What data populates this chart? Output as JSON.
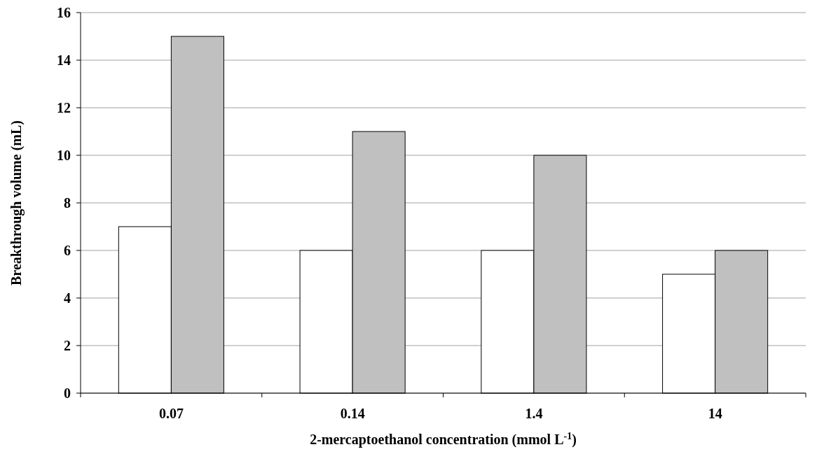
{
  "chart_data": {
    "type": "bar",
    "xlabel": "2-mercaptoethanol concentration (mmol L$^{-1}$)",
    "ylabel": "Breakthrough volume (mL)",
    "categories": [
      "0.07",
      "0.14",
      "1.4",
      "14"
    ],
    "series": [
      {
        "color": "#ffffff",
        "values": [
          7,
          6,
          6,
          5
        ]
      },
      {
        "color": "#c0c0c0",
        "values": [
          15,
          11,
          10,
          6
        ]
      }
    ],
    "ylim": [
      0,
      16
    ],
    "yticks": [
      0,
      2,
      4,
      6,
      8,
      10,
      12,
      14,
      16
    ],
    "grid": "y"
  }
}
